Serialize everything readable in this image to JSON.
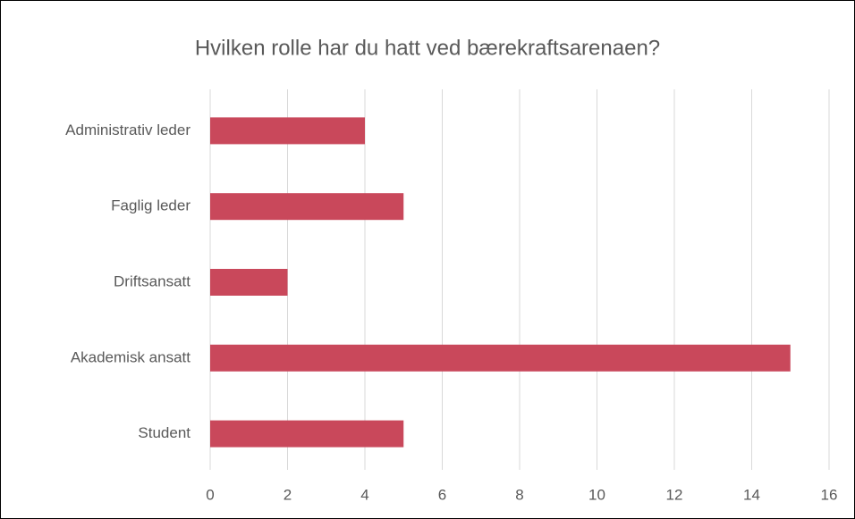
{
  "chart_data": {
    "type": "bar",
    "orientation": "horizontal",
    "title": "Hvilken rolle har du hatt ved bærekraftsarenaen?",
    "categories": [
      "Administrativ leder",
      "Faglig leder",
      "Driftsansatt",
      "Akademisk ansatt",
      "Student"
    ],
    "values": [
      4,
      5,
      2,
      15,
      5
    ],
    "color": "#c9485b",
    "xlim": [
      0,
      16
    ],
    "xticks": [
      0,
      2,
      4,
      6,
      8,
      10,
      12,
      14,
      16
    ],
    "grid": true
  }
}
